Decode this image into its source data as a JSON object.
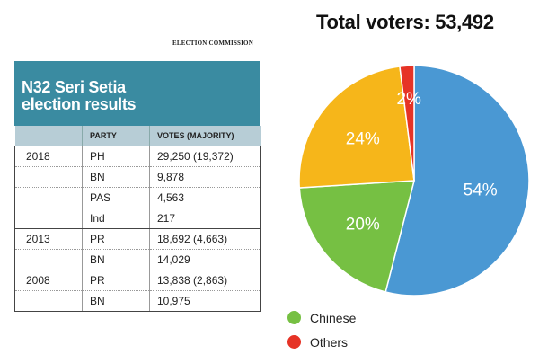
{
  "source": "ELECTION COMMISSION",
  "table": {
    "title_line1": "N32 Seri Setia",
    "title_line2": "election results",
    "headers": [
      "",
      "PARTY",
      "VOTES (MAJORITY)"
    ],
    "rows": [
      {
        "year": "2018",
        "party": "PH",
        "votes": "29,250 (19,372)"
      },
      {
        "year": "",
        "party": "BN",
        "votes": "9,878"
      },
      {
        "year": "",
        "party": "PAS",
        "votes": "4,563"
      },
      {
        "year": "",
        "party": "Ind",
        "votes": "217"
      },
      {
        "year": "2013",
        "party": "PR",
        "votes": "18,692 (4,663)"
      },
      {
        "year": "",
        "party": "BN",
        "votes": "14,029"
      },
      {
        "year": "2008",
        "party": "PR",
        "votes": "13,838 (2,863)"
      },
      {
        "year": "",
        "party": "BN",
        "votes": "10,975"
      }
    ]
  },
  "chart_data": {
    "type": "pie",
    "title": "Total voters: 53,492",
    "slices": [
      {
        "label": "54%",
        "value": 54,
        "color": "#4a98d3"
      },
      {
        "label": "20%",
        "value": 20,
        "color": "#76c043"
      },
      {
        "label": "24%",
        "value": 24,
        "color": "#f6b61a"
      },
      {
        "label": "2%",
        "value": 2,
        "color": "#e63326"
      }
    ],
    "legend": [
      {
        "name": "Chinese",
        "color": "#76c043"
      },
      {
        "name": "Others",
        "color": "#e63326"
      }
    ]
  }
}
